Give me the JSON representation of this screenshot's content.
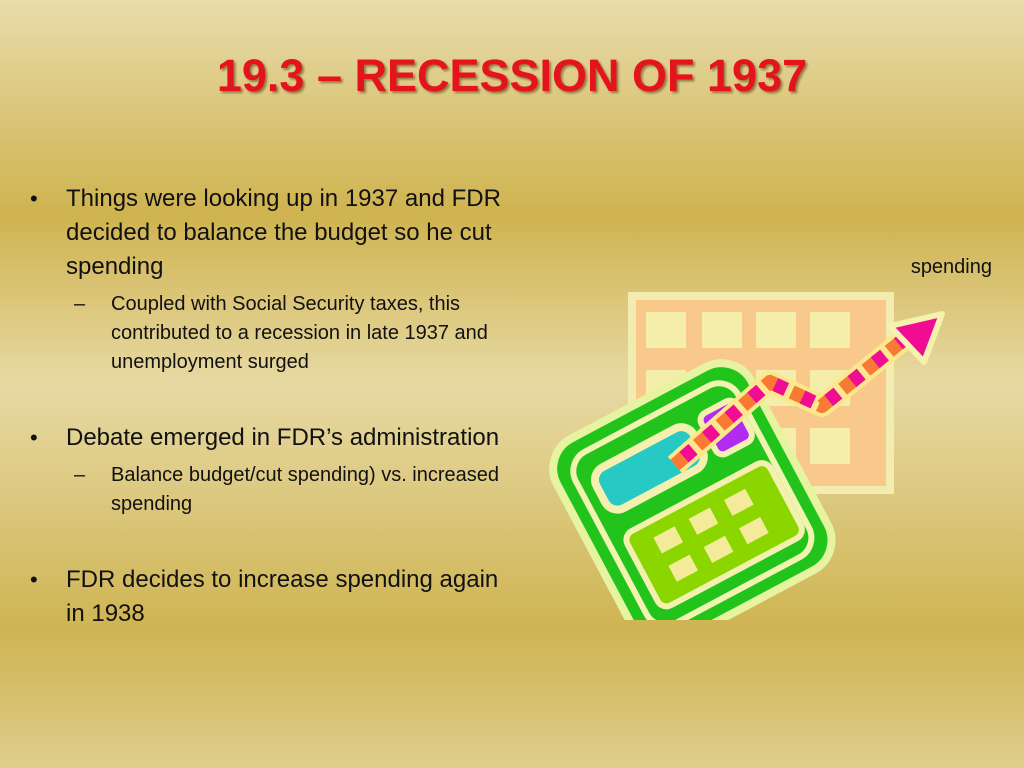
{
  "slide": {
    "title": "19.3 – RECESSION OF 1937",
    "bullets": [
      {
        "text": "Things were looking up in 1937 and FDR decided to balance the budget so he cut spending",
        "sub": "Coupled with Social Security taxes, this contributed to a recession in late 1937 and unemployment surged"
      },
      {
        "text": "Debate emerged in FDR’s administration",
        "sub": "Balance budget/cut spending) vs. increased spending"
      },
      {
        "text": "FDR decides to increase spending again in 1938"
      }
    ],
    "bullet_glyph": "•",
    "sub_glyph": "–",
    "image_caption": "spending",
    "image_icon": "calculator-chart-icon"
  },
  "colors": {
    "title": "#e5131c",
    "calculator_body": "#22c41c",
    "chart_panel": "#f9c98b",
    "arrow": "#f00c93"
  }
}
